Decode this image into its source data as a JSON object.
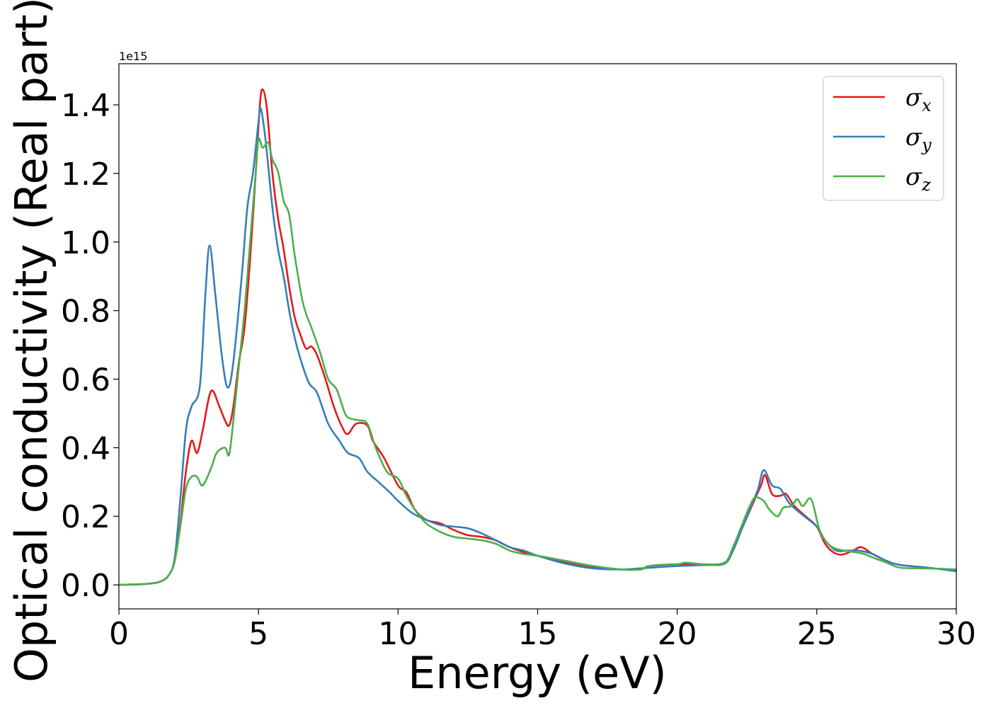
{
  "chart_data": {
    "type": "line",
    "title": "",
    "xlabel": "Energy (eV)",
    "ylabel": "Optical conductivity (Real part)",
    "y_offset_label": "1e15",
    "xlim": [
      0,
      30
    ],
    "ylim": [
      -0.07,
      1.52
    ],
    "xticks": [
      0,
      5,
      10,
      15,
      20,
      25,
      30
    ],
    "xtick_labels": [
      "0",
      "5",
      "10",
      "15",
      "20",
      "25",
      "30"
    ],
    "yticks": [
      0.0,
      0.2,
      0.4,
      0.6,
      0.8,
      1.0,
      1.2,
      1.4
    ],
    "ytick_labels": [
      "0.0",
      "0.2",
      "0.4",
      "0.6",
      "0.8",
      "1.0",
      "1.2",
      "1.4"
    ],
    "grid": false,
    "legend_position": "top-right",
    "series": [
      {
        "name": "σx",
        "symbol": "σ",
        "subscript": "x",
        "color": "#e41a1c",
        "points": [
          [
            0,
            0
          ],
          [
            1,
            0.003
          ],
          [
            1.5,
            0.01
          ],
          [
            1.8,
            0.03
          ],
          [
            2,
            0.07
          ],
          [
            2.2,
            0.18
          ],
          [
            2.4,
            0.33
          ],
          [
            2.6,
            0.42
          ],
          [
            2.8,
            0.385
          ],
          [
            3,
            0.45
          ],
          [
            3.3,
            0.565
          ],
          [
            3.6,
            0.52
          ],
          [
            3.8,
            0.48
          ],
          [
            3.95,
            0.465
          ],
          [
            4.1,
            0.52
          ],
          [
            4.3,
            0.65
          ],
          [
            4.5,
            0.75
          ],
          [
            4.7,
            0.95
          ],
          [
            4.9,
            1.2
          ],
          [
            5.05,
            1.4
          ],
          [
            5.15,
            1.445
          ],
          [
            5.3,
            1.39
          ],
          [
            5.5,
            1.2
          ],
          [
            5.7,
            1.07
          ],
          [
            5.9,
            0.98
          ],
          [
            6.1,
            0.87
          ],
          [
            6.3,
            0.78
          ],
          [
            6.5,
            0.73
          ],
          [
            6.7,
            0.69
          ],
          [
            6.9,
            0.695
          ],
          [
            7.1,
            0.67
          ],
          [
            7.4,
            0.6
          ],
          [
            7.7,
            0.52
          ],
          [
            8.0,
            0.46
          ],
          [
            8.2,
            0.44
          ],
          [
            8.5,
            0.47
          ],
          [
            8.9,
            0.465
          ],
          [
            9.1,
            0.42
          ],
          [
            9.5,
            0.37
          ],
          [
            10,
            0.29
          ],
          [
            10.3,
            0.27
          ],
          [
            10.6,
            0.22
          ],
          [
            11,
            0.19
          ],
          [
            11.5,
            0.18
          ],
          [
            12,
            0.16
          ],
          [
            12.5,
            0.145
          ],
          [
            13,
            0.14
          ],
          [
            13.5,
            0.13
          ],
          [
            14,
            0.11
          ],
          [
            14.5,
            0.095
          ],
          [
            15,
            0.085
          ],
          [
            16,
            0.065
          ],
          [
            17,
            0.05
          ],
          [
            18,
            0.045
          ],
          [
            18.7,
            0.045
          ],
          [
            19,
            0.055
          ],
          [
            20,
            0.06
          ],
          [
            21,
            0.058
          ],
          [
            21.7,
            0.065
          ],
          [
            22,
            0.1
          ],
          [
            22.3,
            0.16
          ],
          [
            22.7,
            0.235
          ],
          [
            23.0,
            0.29
          ],
          [
            23.15,
            0.32
          ],
          [
            23.4,
            0.265
          ],
          [
            23.7,
            0.26
          ],
          [
            23.9,
            0.265
          ],
          [
            24.2,
            0.23
          ],
          [
            24.6,
            0.2
          ],
          [
            25,
            0.17
          ],
          [
            25.3,
            0.12
          ],
          [
            25.6,
            0.095
          ],
          [
            25.9,
            0.088
          ],
          [
            26.3,
            0.1
          ],
          [
            26.6,
            0.11
          ],
          [
            27,
            0.09
          ],
          [
            27.5,
            0.07
          ],
          [
            28,
            0.058
          ],
          [
            29,
            0.05
          ],
          [
            30,
            0.04
          ]
        ]
      },
      {
        "name": "σy",
        "symbol": "σ",
        "subscript": "y",
        "color": "#377eb8",
        "points": [
          [
            0,
            0
          ],
          [
            1,
            0.003
          ],
          [
            1.5,
            0.01
          ],
          [
            1.8,
            0.03
          ],
          [
            2,
            0.08
          ],
          [
            2.2,
            0.25
          ],
          [
            2.4,
            0.45
          ],
          [
            2.6,
            0.52
          ],
          [
            2.9,
            0.58
          ],
          [
            3.1,
            0.85
          ],
          [
            3.25,
            0.99
          ],
          [
            3.45,
            0.85
          ],
          [
            3.7,
            0.66
          ],
          [
            3.9,
            0.575
          ],
          [
            4.1,
            0.65
          ],
          [
            4.4,
            0.9
          ],
          [
            4.6,
            1.1
          ],
          [
            4.8,
            1.2
          ],
          [
            5.0,
            1.35
          ],
          [
            5.08,
            1.39
          ],
          [
            5.25,
            1.3
          ],
          [
            5.5,
            1.1
          ],
          [
            5.7,
            0.98
          ],
          [
            5.9,
            0.9
          ],
          [
            6.1,
            0.8
          ],
          [
            6.3,
            0.72
          ],
          [
            6.5,
            0.66
          ],
          [
            6.8,
            0.59
          ],
          [
            7.1,
            0.56
          ],
          [
            7.5,
            0.47
          ],
          [
            7.9,
            0.42
          ],
          [
            8.2,
            0.385
          ],
          [
            8.6,
            0.37
          ],
          [
            8.9,
            0.33
          ],
          [
            9.3,
            0.3
          ],
          [
            9.7,
            0.27
          ],
          [
            10,
            0.245
          ],
          [
            10.5,
            0.21
          ],
          [
            11,
            0.19
          ],
          [
            11.5,
            0.175
          ],
          [
            12,
            0.17
          ],
          [
            12.5,
            0.165
          ],
          [
            13,
            0.15
          ],
          [
            13.5,
            0.13
          ],
          [
            14,
            0.11
          ],
          [
            14.5,
            0.1
          ],
          [
            15,
            0.085
          ],
          [
            16,
            0.062
          ],
          [
            17,
            0.048
          ],
          [
            18,
            0.045
          ],
          [
            19,
            0.05
          ],
          [
            20,
            0.055
          ],
          [
            21,
            0.058
          ],
          [
            21.7,
            0.062
          ],
          [
            22,
            0.1
          ],
          [
            22.3,
            0.16
          ],
          [
            22.7,
            0.24
          ],
          [
            22.9,
            0.28
          ],
          [
            23.1,
            0.335
          ],
          [
            23.4,
            0.29
          ],
          [
            23.7,
            0.28
          ],
          [
            24,
            0.24
          ],
          [
            24.4,
            0.21
          ],
          [
            25,
            0.17
          ],
          [
            25.3,
            0.13
          ],
          [
            25.7,
            0.1
          ],
          [
            26.1,
            0.1
          ],
          [
            26.5,
            0.1
          ],
          [
            27,
            0.09
          ],
          [
            27.5,
            0.07
          ],
          [
            28,
            0.058
          ],
          [
            29,
            0.05
          ],
          [
            30,
            0.04
          ]
        ]
      },
      {
        "name": "σz",
        "symbol": "σ",
        "subscript": "z",
        "color": "#4daf4a",
        "points": [
          [
            0,
            0
          ],
          [
            1,
            0.003
          ],
          [
            1.5,
            0.01
          ],
          [
            1.8,
            0.03
          ],
          [
            2,
            0.07
          ],
          [
            2.2,
            0.17
          ],
          [
            2.4,
            0.28
          ],
          [
            2.6,
            0.315
          ],
          [
            2.8,
            0.315
          ],
          [
            3,
            0.29
          ],
          [
            3.3,
            0.34
          ],
          [
            3.5,
            0.385
          ],
          [
            3.8,
            0.4
          ],
          [
            3.95,
            0.38
          ],
          [
            4.1,
            0.48
          ],
          [
            4.3,
            0.64
          ],
          [
            4.5,
            0.8
          ],
          [
            4.7,
            1.0
          ],
          [
            4.9,
            1.2
          ],
          [
            5.0,
            1.3
          ],
          [
            5.15,
            1.275
          ],
          [
            5.35,
            1.29
          ],
          [
            5.5,
            1.24
          ],
          [
            5.7,
            1.205
          ],
          [
            5.9,
            1.12
          ],
          [
            6.1,
            1.08
          ],
          [
            6.3,
            0.96
          ],
          [
            6.6,
            0.82
          ],
          [
            6.9,
            0.75
          ],
          [
            7.2,
            0.68
          ],
          [
            7.5,
            0.6
          ],
          [
            7.8,
            0.57
          ],
          [
            8.1,
            0.5
          ],
          [
            8.3,
            0.485
          ],
          [
            8.6,
            0.48
          ],
          [
            8.9,
            0.47
          ],
          [
            9.2,
            0.4
          ],
          [
            9.6,
            0.33
          ],
          [
            10,
            0.31
          ],
          [
            10.3,
            0.26
          ],
          [
            10.6,
            0.22
          ],
          [
            11,
            0.18
          ],
          [
            11.5,
            0.155
          ],
          [
            12,
            0.14
          ],
          [
            12.5,
            0.135
          ],
          [
            13,
            0.13
          ],
          [
            13.5,
            0.12
          ],
          [
            14,
            0.1
          ],
          [
            14.5,
            0.09
          ],
          [
            15,
            0.085
          ],
          [
            16,
            0.07
          ],
          [
            17,
            0.055
          ],
          [
            18,
            0.045
          ],
          [
            18.7,
            0.045
          ],
          [
            19,
            0.055
          ],
          [
            20,
            0.06
          ],
          [
            20.3,
            0.065
          ],
          [
            21,
            0.06
          ],
          [
            21.7,
            0.065
          ],
          [
            22,
            0.11
          ],
          [
            22.3,
            0.17
          ],
          [
            22.6,
            0.23
          ],
          [
            22.8,
            0.255
          ],
          [
            23.1,
            0.245
          ],
          [
            23.3,
            0.22
          ],
          [
            23.6,
            0.2
          ],
          [
            23.8,
            0.225
          ],
          [
            24.1,
            0.23
          ],
          [
            24.3,
            0.25
          ],
          [
            24.5,
            0.23
          ],
          [
            24.8,
            0.25
          ],
          [
            25.1,
            0.16
          ],
          [
            25.4,
            0.12
          ],
          [
            25.7,
            0.105
          ],
          [
            26,
            0.1
          ],
          [
            26.4,
            0.095
          ],
          [
            26.7,
            0.09
          ],
          [
            27,
            0.08
          ],
          [
            27.5,
            0.065
          ],
          [
            28,
            0.05
          ],
          [
            29,
            0.048
          ],
          [
            30,
            0.045
          ]
        ]
      }
    ]
  }
}
